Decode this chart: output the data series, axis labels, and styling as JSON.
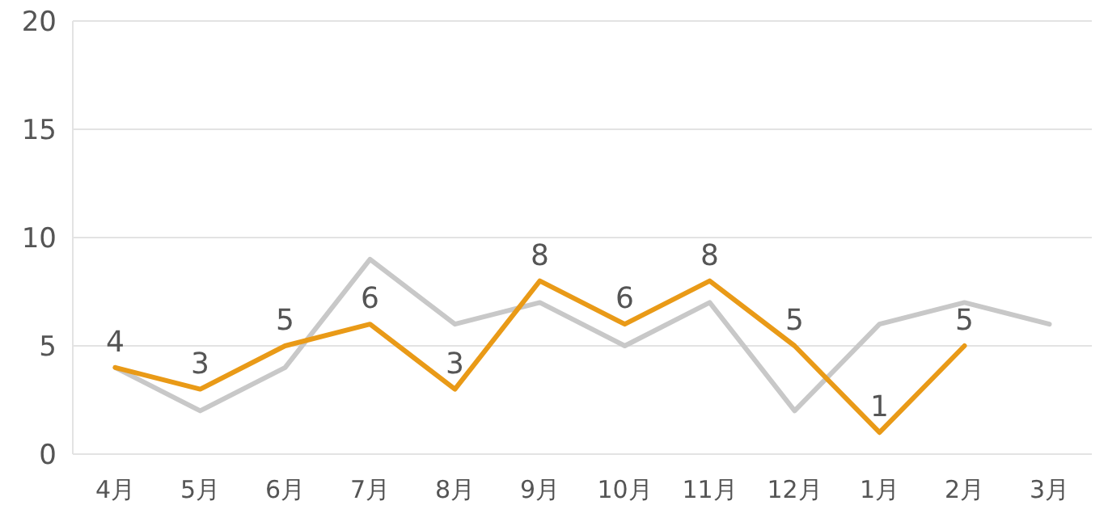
{
  "chart_data": {
    "type": "line",
    "categories": [
      "4月",
      "5月",
      "6月",
      "7月",
      "8月",
      "9月",
      "10月",
      "11月",
      "12月",
      "1月",
      "2月",
      "3月"
    ],
    "series": [
      {
        "color": "#c8c8c8",
        "values": [
          4,
          2,
          4,
          9,
          6,
          7,
          5,
          7,
          2,
          6,
          7,
          6
        ]
      },
      {
        "color": "#e99a17",
        "values": [
          4,
          3,
          5,
          6,
          3,
          8,
          6,
          8,
          5,
          1,
          5,
          null
        ],
        "value_labels": [
          "4",
          "3",
          "5",
          "6",
          "3",
          "8",
          "6",
          "8",
          "5",
          "1",
          "5",
          null
        ]
      }
    ],
    "ylim": [
      0,
      20
    ],
    "yticks": [
      0,
      5,
      10,
      15,
      20
    ],
    "grid": "y",
    "marker": "none",
    "line_style": "solid"
  }
}
